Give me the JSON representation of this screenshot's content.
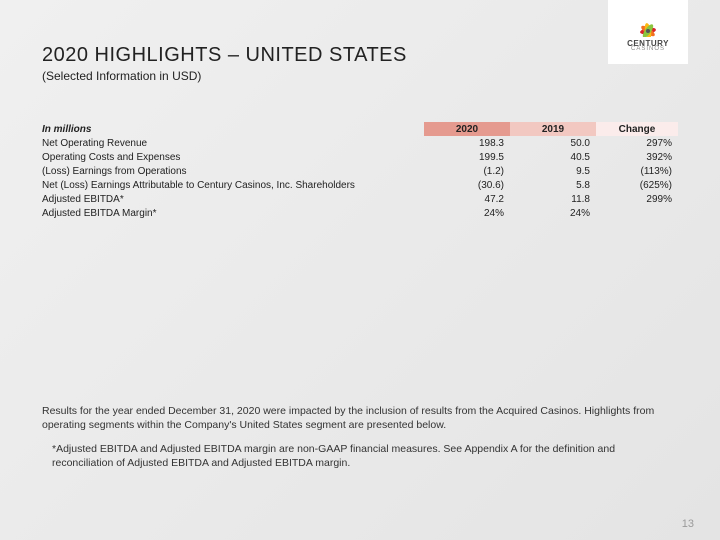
{
  "logo": {
    "brand": "CENTURY",
    "sub": "CASINOS"
  },
  "title": "2020 HIGHLIGHTS – UNITED STATES",
  "subtitle": "(Selected Information in USD)",
  "table": {
    "corner_label": "In millions",
    "columns": [
      "2020",
      "2019",
      "Change"
    ],
    "column_bg": [
      "#e59a8f",
      "#f2c8c1",
      "#fbeceb"
    ],
    "col_widths": [
      "382px",
      "86px",
      "86px",
      "82px"
    ],
    "rows": [
      {
        "label": "Net Operating Revenue",
        "vals": [
          "198.3",
          "50.0",
          "297%"
        ]
      },
      {
        "label": "Operating Costs and Expenses",
        "vals": [
          "199.5",
          "40.5",
          "392%"
        ]
      },
      {
        "label": "(Loss) Earnings from Operations",
        "vals": [
          "(1.2)",
          "9.5",
          "(113%)"
        ]
      },
      {
        "label": "Net (Loss) Earnings Attributable to Century Casinos, Inc. Shareholders",
        "vals": [
          "(30.6)",
          "5.8",
          "(625%)"
        ]
      },
      {
        "label": "Adjusted EBITDA*",
        "vals": [
          "47.2",
          "11.8",
          "299%"
        ]
      },
      {
        "label": "Adjusted EBITDA Margin*",
        "vals": [
          "24%",
          "24%",
          ""
        ]
      }
    ]
  },
  "para1": "Results for the year ended December 31, 2020 were impacted by the inclusion of results from the Acquired Casinos. Highlights from operating segments within the Company's United States segment are presented below.",
  "para2": "*Adjusted EBITDA and Adjusted EBITDA margin are non-GAAP financial measures. See Appendix A for the definition and reconciliation of Adjusted EBITDA and Adjusted EBITDA margin.",
  "page_number": "13"
}
